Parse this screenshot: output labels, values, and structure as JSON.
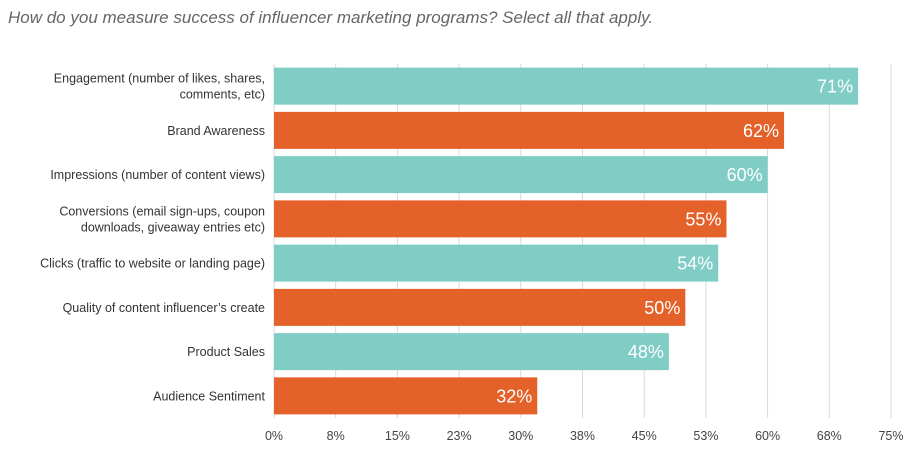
{
  "chart_data": {
    "type": "bar",
    "orientation": "horizontal",
    "title": "How do you measure success of influencer marketing programs?  Select all that apply.",
    "categories": [
      [
        "Engagement (number of likes, shares,",
        "comments, etc)"
      ],
      [
        "Brand Awareness"
      ],
      [
        "Impressions (number of content views)"
      ],
      [
        "Conversions (email sign-ups, coupon",
        "downloads, giveaway entries etc)"
      ],
      [
        "Clicks (traffic to website or landing page)"
      ],
      [
        "Quality of content influencer’s create"
      ],
      [
        "Product Sales"
      ],
      [
        "Audience Sentiment"
      ]
    ],
    "values": [
      71,
      62,
      60,
      55,
      54,
      50,
      48,
      32
    ],
    "value_labels": [
      "71%",
      "62%",
      "60%",
      "55%",
      "54%",
      "50%",
      "48%",
      "32%"
    ],
    "x_ticks": [
      0,
      7.5,
      15,
      22.5,
      30,
      37.5,
      45,
      52.5,
      60,
      67.5,
      75
    ],
    "x_tick_labels": [
      "0%",
      "8%",
      "15%",
      "23%",
      "30%",
      "38%",
      "45%",
      "53%",
      "60%",
      "68%",
      "75%"
    ],
    "xlim": [
      0,
      75
    ],
    "grid": true,
    "legend": "none",
    "colors": {
      "teal": "#7fcdc5",
      "orange": "#e4622a",
      "grid": "#d9d9d9"
    }
  }
}
